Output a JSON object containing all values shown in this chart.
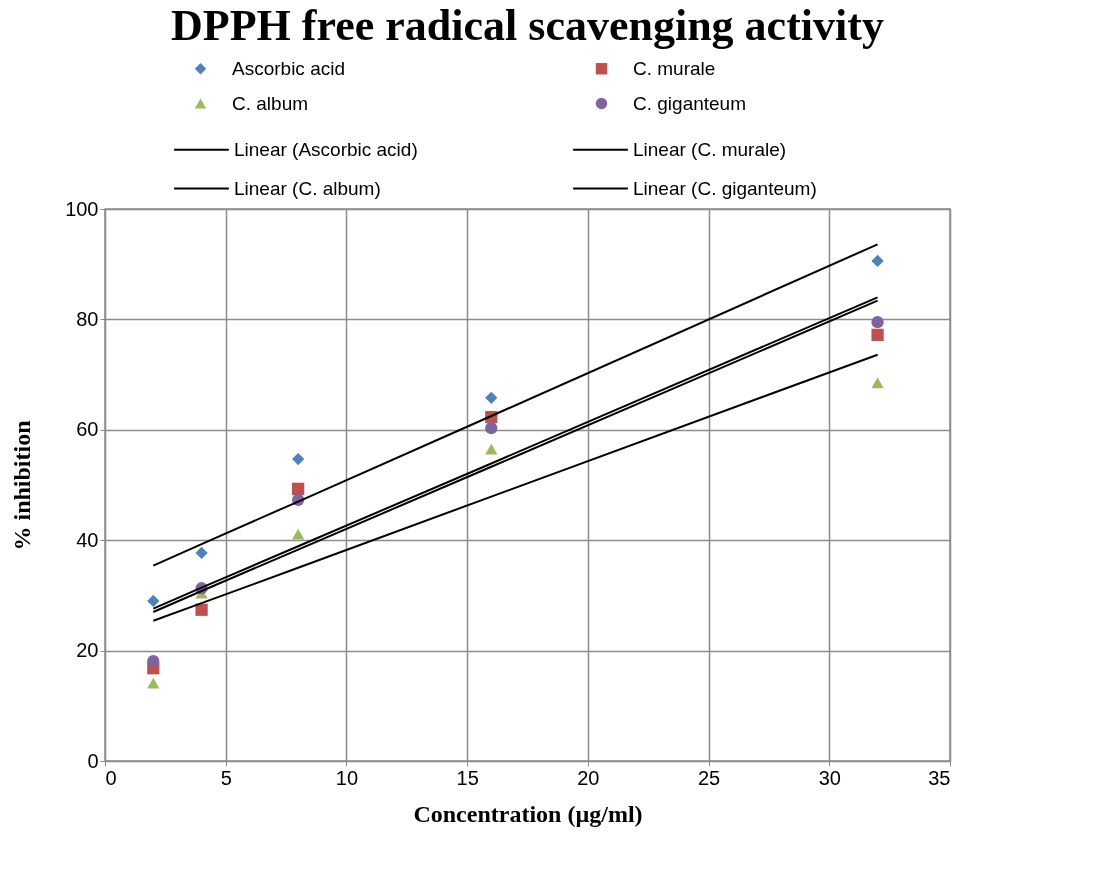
{
  "chart_data": {
    "type": "scatter",
    "title": "DPPH free radical scavenging activity",
    "xlabel": "Concentration (µg/ml)",
    "ylabel": "% inhibition",
    "x": [
      2,
      4,
      8,
      16,
      32
    ],
    "series": [
      {
        "name": "Ascorbic acid",
        "color": "#4f81bd",
        "marker": "diamond",
        "values": [
          29.0,
          37.7,
          54.7,
          65.8,
          90.6
        ]
      },
      {
        "name": "C. murale",
        "color": "#c0504d",
        "marker": "square",
        "values": [
          16.8,
          27.4,
          49.3,
          62.3,
          77.2
        ]
      },
      {
        "name": "C. album",
        "color": "#9bbb59",
        "marker": "triangle",
        "values": [
          14.1,
          30.4,
          41.1,
          56.5,
          68.5
        ]
      },
      {
        "name": "C. giganteum",
        "color": "#8064a2",
        "marker": "circle",
        "values": [
          18.1,
          31.3,
          47.3,
          60.3,
          79.5
        ]
      },
      {
        "name": "Linear (Ascorbic acid)",
        "type": "line",
        "color": "#000000",
        "marker": "none",
        "values": [
          35.4,
          39.3,
          47.0,
          62.5,
          93.6
        ]
      },
      {
        "name": "Linear (C. murale)",
        "type": "line",
        "color": "#000000",
        "marker": "none",
        "values": [
          27.6,
          31.4,
          38.9,
          53.9,
          84.0
        ]
      },
      {
        "name": "Linear (C. album)",
        "type": "line",
        "color": "#000000",
        "marker": "none",
        "values": [
          25.4,
          28.6,
          35.0,
          47.9,
          73.6
        ]
      },
      {
        "name": "Linear (C. giganteum)",
        "type": "line",
        "color": "#000000",
        "marker": "none",
        "values": [
          27.0,
          30.8,
          38.3,
          53.3,
          83.4
        ]
      }
    ],
    "xlim": [
      0,
      35
    ],
    "xticks": [
      0,
      5,
      10,
      15,
      20,
      25,
      30,
      35
    ],
    "ylim": [
      0,
      100
    ],
    "yticks": [
      0,
      20,
      40,
      60,
      80,
      100
    ],
    "grid": true,
    "legend": "top"
  }
}
